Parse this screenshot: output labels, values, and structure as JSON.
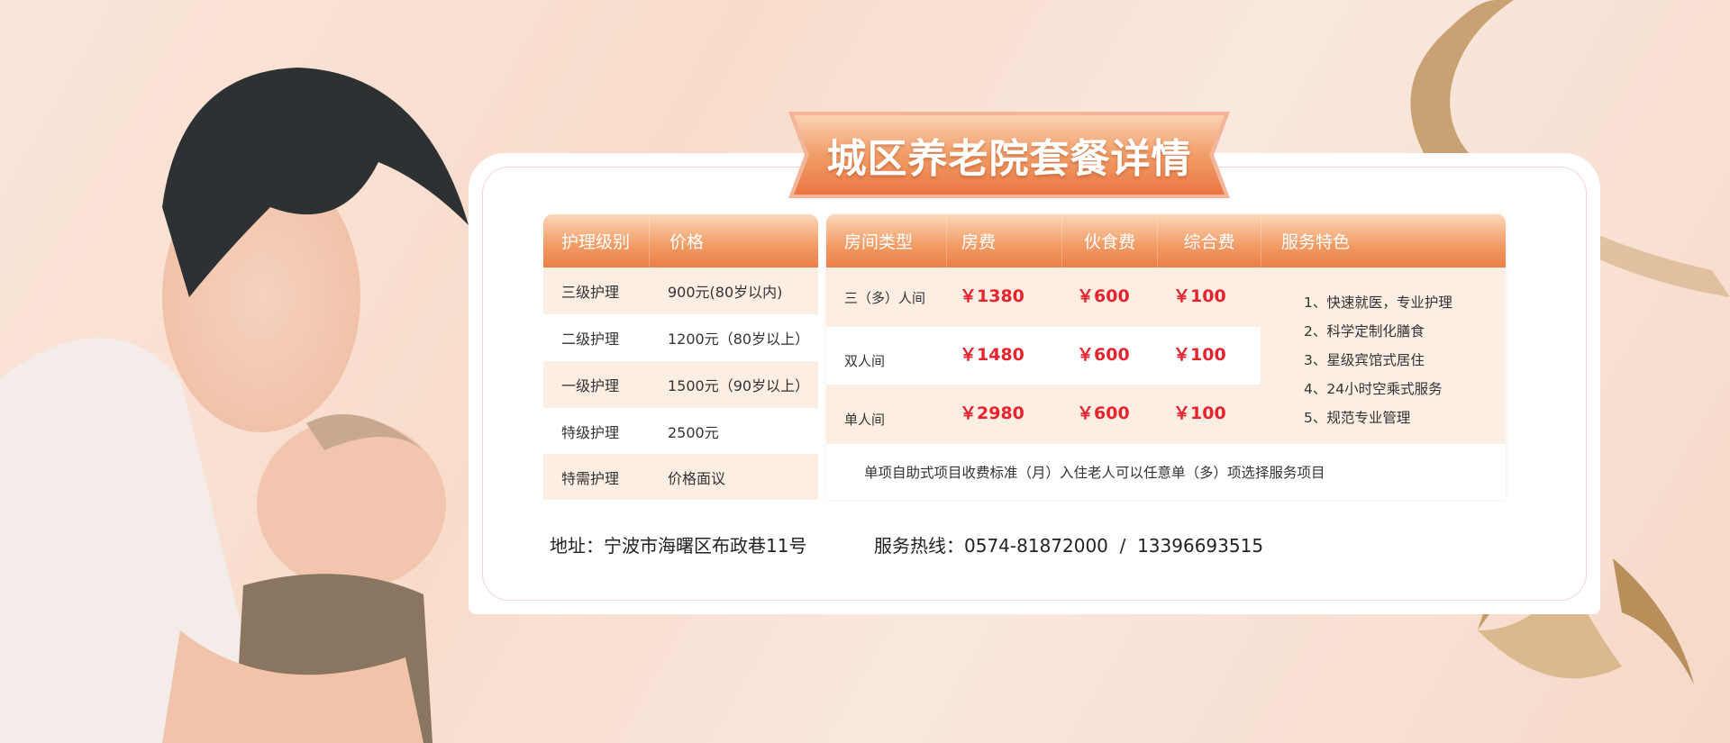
{
  "title": "城区养老院套餐详情",
  "care_table": {
    "headers": [
      "护理级别",
      "价格"
    ],
    "rows": [
      [
        "三级护理",
        "900元(80岁以内)"
      ],
      [
        "二级护理",
        "1200元（80岁以上）"
      ],
      [
        "一级护理",
        "1500元（90岁以上）"
      ],
      [
        "特级护理",
        "2500元"
      ],
      [
        "特需护理",
        "价格面议"
      ]
    ]
  },
  "room_table": {
    "headers": [
      "房间类型",
      "房费",
      "伙食费",
      "综合费",
      "服务特色"
    ],
    "rows": [
      [
        "三（多）人间",
        "￥1380",
        "￥600",
        "￥100"
      ],
      [
        "双人间",
        "￥1480",
        "￥600",
        "￥100"
      ],
      [
        "单人间",
        "￥2980",
        "￥600",
        "￥100"
      ]
    ],
    "features": [
      "1、快速就医，专业护理",
      "2、科学定制化膳食",
      "3、星级宾馆式居住",
      "4、24小时空乘式服务",
      "5、规范专业管理"
    ],
    "note": "单项自助式项目收费标准（月）入住老人可以任意单（多）项选择服务项目"
  },
  "footer": {
    "address": "地址：宁波市海曙区布政巷11号",
    "hotline": "服务热线：0574-81872000  /  13396693515"
  },
  "colors": {
    "accent": "#ec7f48",
    "price": "#e6232e",
    "row_peach": "#fdeee3",
    "ribbon": "#c9a274"
  }
}
